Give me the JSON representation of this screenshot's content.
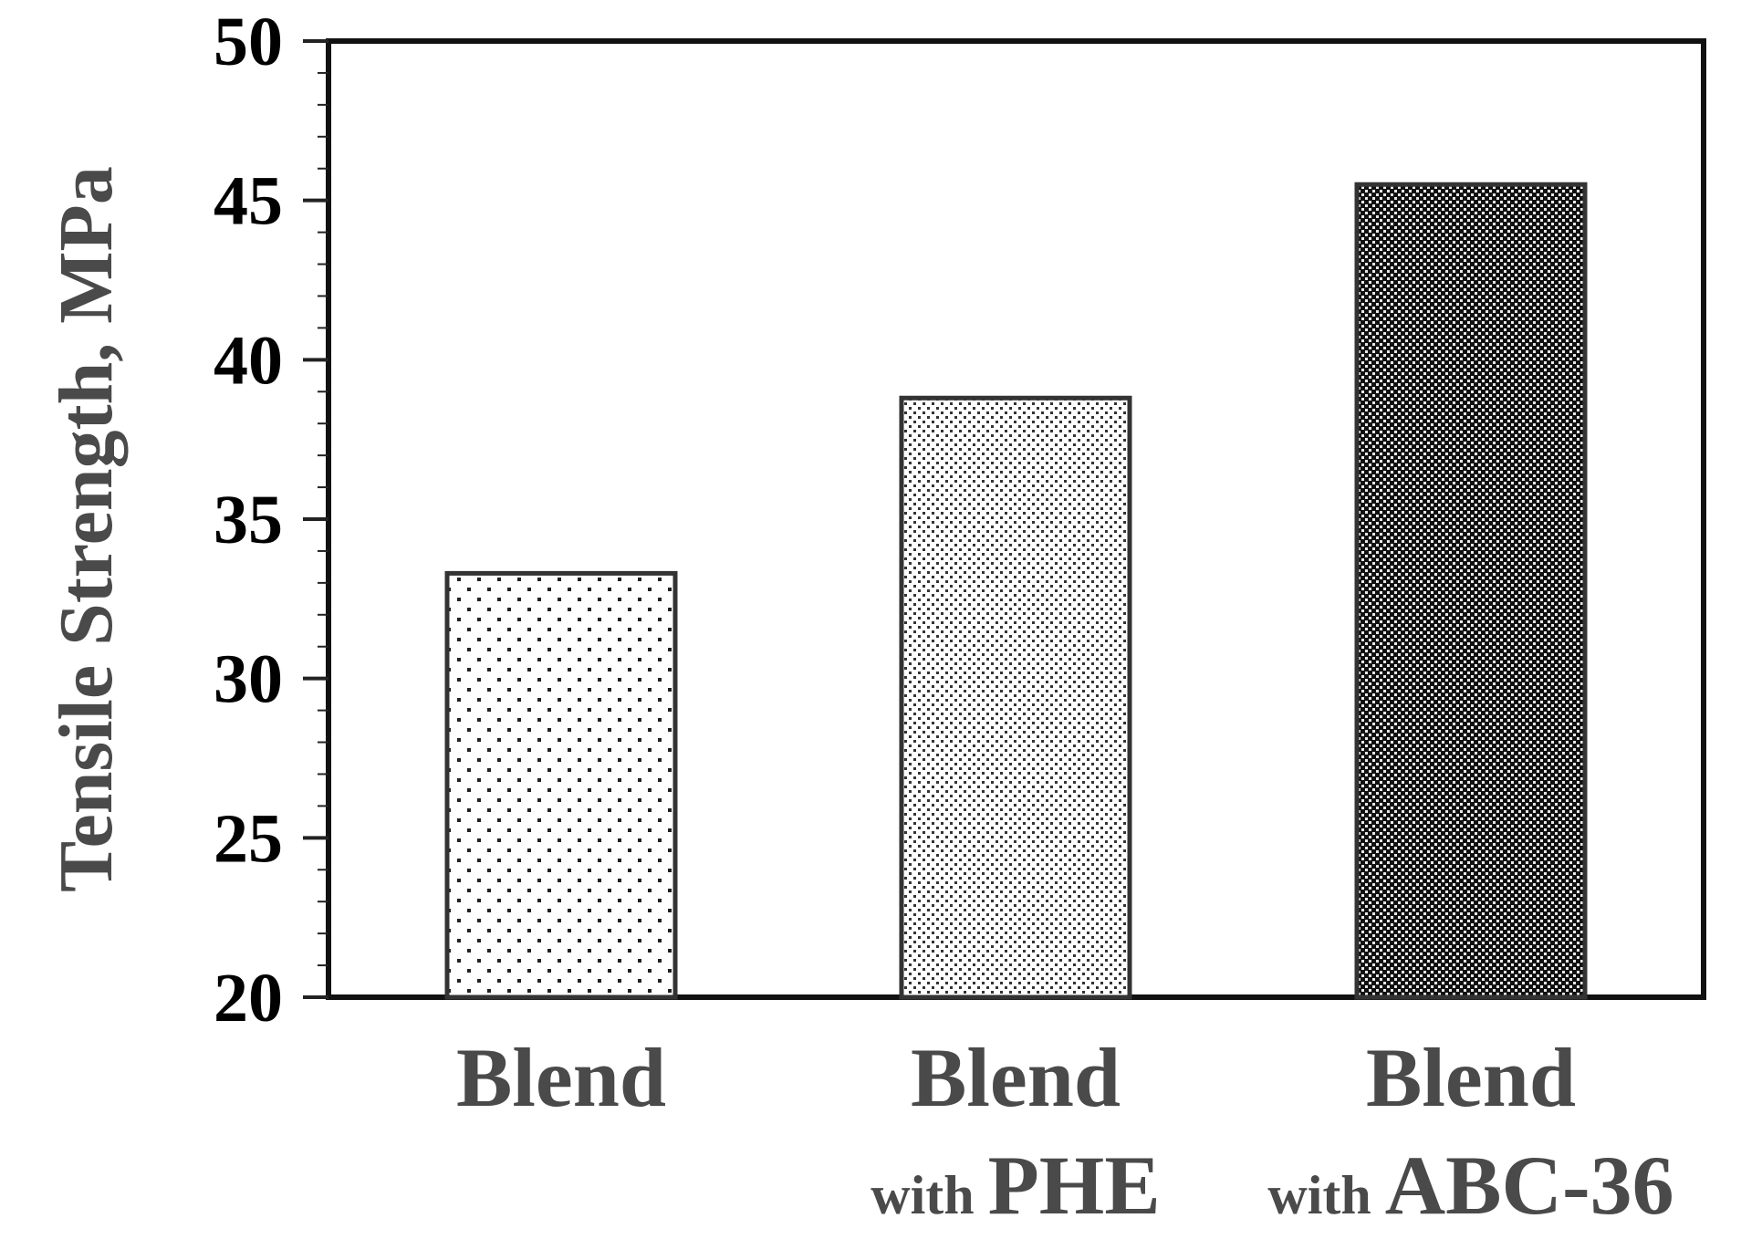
{
  "chart_data": {
    "type": "bar",
    "categories": [
      {
        "line1": "Blend",
        "line2": ""
      },
      {
        "line1": "Blend",
        "line2_small": "with",
        "line2_big": "PHE"
      },
      {
        "line1": "Blend",
        "line2_small": "with",
        "line2_big": "ABC-36"
      }
    ],
    "values": [
      33.3,
      38.8,
      45.5
    ],
    "title": "",
    "xlabel": "",
    "ylabel": "Tensile Strength, MPa",
    "ylim": [
      20,
      50
    ],
    "yticks": [
      20,
      25,
      30,
      35,
      40,
      45,
      50
    ],
    "grid": false,
    "legend": "none",
    "bar_patterns": [
      "sparse-dots",
      "dense-dots",
      "dark-checker"
    ],
    "colors": {
      "frame": "#000000",
      "bar_outline": "#333333",
      "label": "#4a4a4a",
      "tick_label": "#000000"
    }
  }
}
